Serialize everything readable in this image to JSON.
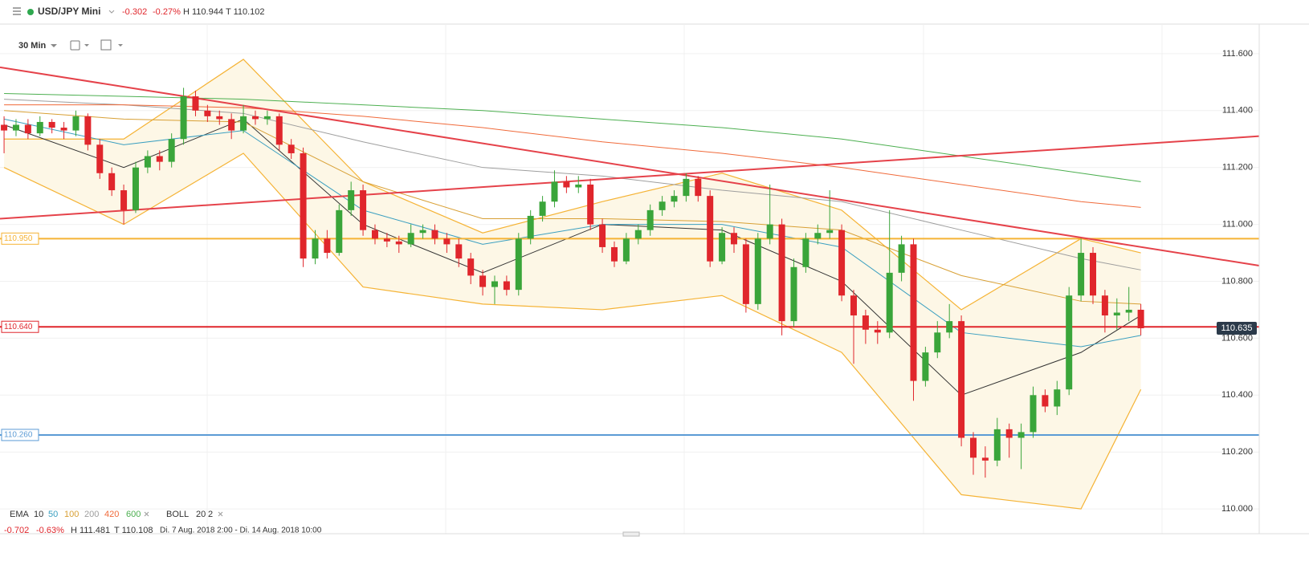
{
  "header": {
    "symbol": "USD/JPY Mini",
    "change": "-0.302",
    "change_pct": "-0.27%",
    "high": "H 110.944",
    "low": "T 110.102"
  },
  "toolbar": {
    "interval": "30 Min"
  },
  "footer": {
    "change": "-0.702",
    "change_pct": "-0.63%",
    "high": "H 111.481",
    "low": "T 110.108",
    "range": "Di. 7 Aug. 2018 2:00 - Di. 14 Aug. 2018 10:00"
  },
  "chart_data": {
    "type": "candlestick",
    "xlim": [
      -0.34,
      101
    ],
    "ylim": [
      109.927,
      111.704
    ],
    "yticks": [
      {
        "value": 110.0,
        "label": "110.000"
      },
      {
        "value": 110.2,
        "label": "110.200"
      },
      {
        "value": 110.4,
        "label": "110.400"
      },
      {
        "value": 110.6,
        "label": "110.600"
      },
      {
        "value": 110.8,
        "label": "110.800"
      },
      {
        "value": 111.0,
        "label": "111.000"
      },
      {
        "value": 111.2,
        "label": "111.200"
      },
      {
        "value": 111.4,
        "label": "111.400"
      },
      {
        "value": 111.6,
        "label": "111.600"
      }
    ],
    "grid": true,
    "up_color": "#3aa53a",
    "down_color": "#e0262c",
    "open": [
      111.35,
      111.33,
      111.35,
      111.32,
      111.36,
      111.34,
      111.33,
      111.38,
      111.28,
      111.18,
      111.12,
      111.05,
      111.2,
      111.24,
      111.22,
      111.3,
      111.45,
      111.4,
      111.38,
      111.37,
      111.33,
      111.38,
      111.37,
      111.38,
      111.28,
      111.25,
      110.88,
      110.95,
      110.9,
      111.05,
      111.12,
      110.98,
      110.95,
      110.94,
      110.93,
      110.97,
      110.98,
      110.95,
      110.93,
      110.88,
      110.82,
      110.78,
      110.8,
      110.77,
      110.95,
      111.03,
      111.08,
      111.15,
      111.13,
      111.14,
      111.0,
      110.92,
      110.87,
      110.95,
      110.98,
      111.05,
      111.08,
      111.1,
      111.16,
      111.1,
      110.87,
      110.97,
      110.93,
      110.72,
      110.95,
      111.0,
      110.66,
      110.85,
      110.95,
      110.97,
      110.98,
      110.75,
      110.68,
      110.63,
      110.62,
      110.83,
      110.93,
      110.45,
      110.55,
      110.62,
      110.66,
      110.25,
      110.18,
      110.17,
      110.28,
      110.25,
      110.27,
      110.4,
      110.36,
      110.42,
      110.75,
      110.9,
      110.75,
      110.68,
      110.69,
      110.7
    ],
    "high": [
      111.38,
      111.37,
      111.37,
      111.38,
      111.37,
      111.36,
      111.4,
      111.39,
      111.3,
      111.2,
      111.14,
      111.22,
      111.26,
      111.26,
      111.32,
      111.48,
      111.47,
      111.42,
      111.4,
      111.39,
      111.42,
      111.4,
      111.4,
      111.39,
      111.3,
      111.27,
      110.98,
      110.98,
      111.07,
      111.15,
      111.14,
      111.0,
      110.97,
      110.96,
      111.0,
      111.0,
      111.0,
      110.97,
      110.95,
      110.9,
      110.84,
      110.82,
      110.82,
      110.97,
      111.05,
      111.1,
      111.19,
      111.17,
      111.17,
      111.16,
      111.02,
      110.94,
      110.97,
      111.0,
      111.07,
      111.1,
      111.12,
      111.18,
      111.17,
      111.12,
      110.99,
      110.99,
      110.95,
      110.97,
      111.14,
      111.02,
      110.88,
      110.97,
      111.0,
      111.12,
      111.0,
      110.77,
      110.7,
      110.66,
      111.05,
      110.96,
      110.95,
      110.57,
      110.66,
      110.72,
      110.68,
      110.27,
      110.22,
      110.32,
      110.3,
      110.3,
      110.43,
      110.42,
      110.45,
      110.78,
      110.95,
      110.92,
      110.77,
      110.74,
      110.78,
      110.72
    ],
    "low": [
      111.25,
      111.31,
      111.3,
      111.31,
      111.32,
      111.3,
      111.31,
      111.26,
      111.16,
      111.1,
      111.0,
      111.04,
      111.18,
      111.19,
      111.2,
      111.28,
      111.38,
      111.36,
      111.35,
      111.3,
      111.32,
      111.35,
      111.35,
      111.26,
      111.23,
      110.85,
      110.86,
      110.88,
      110.89,
      111.03,
      110.96,
      110.93,
      110.92,
      110.9,
      110.92,
      110.95,
      110.93,
      110.9,
      110.85,
      110.79,
      110.75,
      110.72,
      110.75,
      110.75,
      110.93,
      111.01,
      111.06,
      111.11,
      111.11,
      110.98,
      110.9,
      110.85,
      110.86,
      110.93,
      110.96,
      111.03,
      111.06,
      111.08,
      111.08,
      110.85,
      110.86,
      110.9,
      110.69,
      110.7,
      110.93,
      110.61,
      110.64,
      110.83,
      110.93,
      110.95,
      110.73,
      110.51,
      110.58,
      110.58,
      110.6,
      110.8,
      110.38,
      110.43,
      110.53,
      110.6,
      110.22,
      110.12,
      110.11,
      110.15,
      110.18,
      110.14,
      110.25,
      110.34,
      110.33,
      110.4,
      110.73,
      110.72,
      110.62,
      110.63,
      110.66,
      110.61
    ],
    "close": [
      111.33,
      111.35,
      111.32,
      111.36,
      111.34,
      111.33,
      111.38,
      111.28,
      111.18,
      111.12,
      111.05,
      111.2,
      111.24,
      111.22,
      111.3,
      111.45,
      111.4,
      111.38,
      111.37,
      111.33,
      111.38,
      111.37,
      111.38,
      111.28,
      111.25,
      110.88,
      110.95,
      110.9,
      111.05,
      111.12,
      110.98,
      110.95,
      110.94,
      110.93,
      110.97,
      110.98,
      110.95,
      110.93,
      110.88,
      110.82,
      110.78,
      110.8,
      110.77,
      110.95,
      111.03,
      111.08,
      111.15,
      111.13,
      111.14,
      111.0,
      110.92,
      110.87,
      110.95,
      110.98,
      111.05,
      111.08,
      111.1,
      111.16,
      111.1,
      110.87,
      110.97,
      110.93,
      110.72,
      110.95,
      111.0,
      110.66,
      110.85,
      110.95,
      110.97,
      110.98,
      110.75,
      110.68,
      110.63,
      110.62,
      110.83,
      110.93,
      110.45,
      110.55,
      110.62,
      110.66,
      110.25,
      110.18,
      110.17,
      110.28,
      110.25,
      110.27,
      110.4,
      110.36,
      110.42,
      110.75,
      110.9,
      110.75,
      110.68,
      110.69,
      110.7,
      110.635
    ],
    "ema_label": "EMA",
    "series": [
      {
        "name": "10",
        "color": "#333333",
        "x": [
          0,
          10,
          20,
          30,
          40,
          50,
          60,
          70,
          80,
          90,
          95
        ],
        "values": [
          111.35,
          111.2,
          111.37,
          111.0,
          110.83,
          111.0,
          110.98,
          110.8,
          110.4,
          110.55,
          110.68
        ]
      },
      {
        "name": "50",
        "color": "#3a9fc0",
        "x": [
          0,
          10,
          20,
          30,
          40,
          50,
          60,
          70,
          80,
          90,
          95
        ],
        "values": [
          111.37,
          111.28,
          111.33,
          111.05,
          110.93,
          111.0,
          111.0,
          110.92,
          110.62,
          110.57,
          110.61
        ]
      },
      {
        "name": "100",
        "color": "#d8a035",
        "x": [
          0,
          10,
          20,
          30,
          40,
          50,
          60,
          70,
          80,
          90,
          95
        ],
        "values": [
          111.4,
          111.37,
          111.36,
          111.15,
          111.02,
          111.02,
          111.01,
          110.98,
          110.82,
          110.73,
          110.72
        ]
      },
      {
        "name": "200",
        "color": "#9e9e9e",
        "x": [
          0,
          10,
          20,
          30,
          40,
          50,
          60,
          70,
          80,
          90,
          95
        ],
        "values": [
          111.44,
          111.42,
          111.39,
          111.29,
          111.2,
          111.17,
          111.12,
          111.08,
          110.98,
          110.88,
          110.84
        ]
      },
      {
        "name": "420",
        "color": "#f06a3a",
        "x": [
          0,
          10,
          20,
          30,
          40,
          50,
          60,
          70,
          80,
          90,
          95
        ],
        "values": [
          111.42,
          111.42,
          111.41,
          111.38,
          111.34,
          111.29,
          111.25,
          111.2,
          111.14,
          111.08,
          111.06
        ]
      },
      {
        "name": "600",
        "color": "#4caf50",
        "x": [
          0,
          10,
          20,
          30,
          40,
          50,
          60,
          70,
          80,
          90,
          95
        ],
        "values": [
          111.46,
          111.45,
          111.44,
          111.42,
          111.4,
          111.37,
          111.34,
          111.3,
          111.24,
          111.18,
          111.15
        ]
      }
    ],
    "boll": {
      "name": "BOLL",
      "period": 20,
      "deviation": 2,
      "color": "#f5b335",
      "fill": "#fdf7e6",
      "x": [
        0,
        10,
        20,
        30,
        40,
        50,
        60,
        70,
        80,
        90,
        95
      ],
      "upper": [
        111.3,
        111.3,
        111.58,
        111.15,
        110.97,
        111.08,
        111.18,
        111.05,
        110.7,
        110.95,
        110.9
      ],
      "lower": [
        111.2,
        111.0,
        111.25,
        110.78,
        110.72,
        110.7,
        110.75,
        110.55,
        110.05,
        110.0,
        110.42
      ]
    },
    "trendlines": [
      {
        "color": "#e5424a",
        "x": [
          -0.34,
          104.9
        ],
        "values": [
          111.552,
          110.855
        ]
      },
      {
        "color": "#e5424a",
        "x": [
          -0.34,
          104.9
        ],
        "values": [
          111.02,
          111.31
        ]
      }
    ],
    "levels": [
      {
        "value": 110.95,
        "label": "110.950",
        "color": "#f5b335"
      },
      {
        "value": 110.64,
        "label": "110.640",
        "color": "#e0262c"
      },
      {
        "value": 110.26,
        "label": "110.260",
        "color": "#5b9bd5"
      }
    ],
    "last_price": 110.635
  }
}
